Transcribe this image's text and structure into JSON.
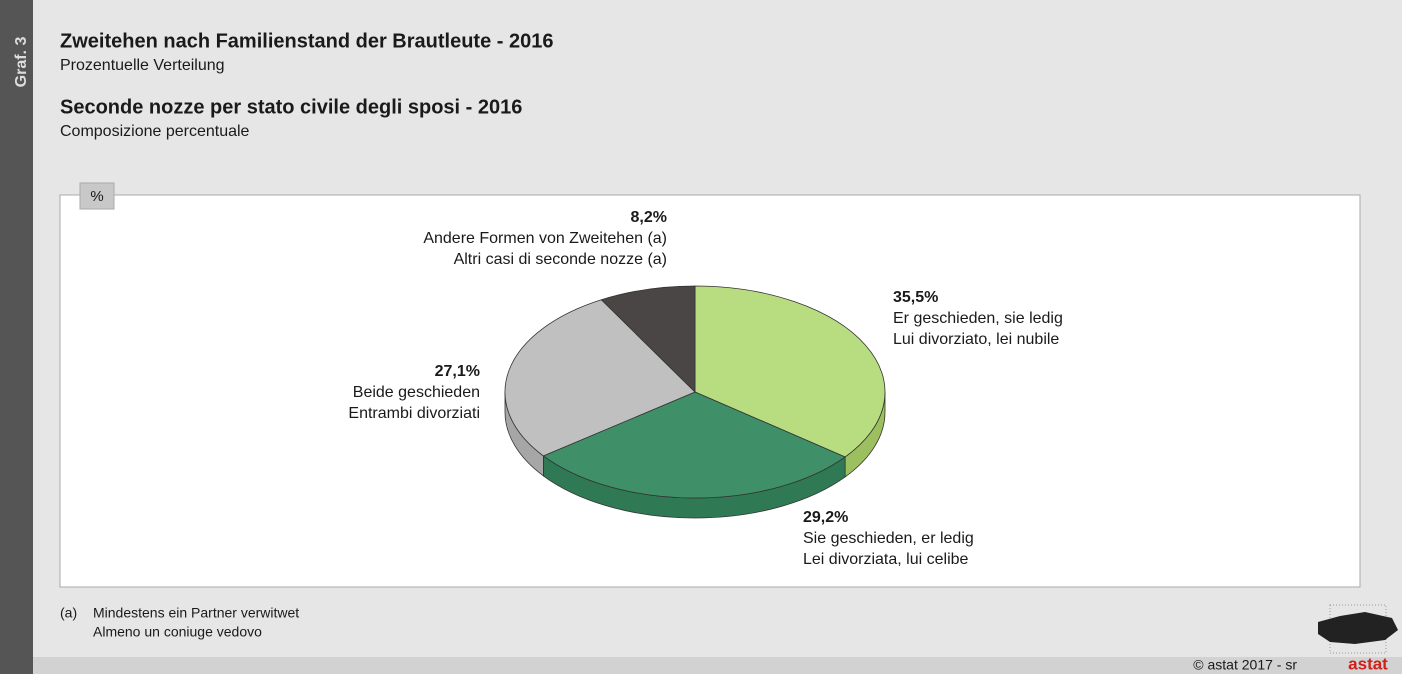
{
  "side_tab": "Graf. 3",
  "chart_data": {
    "type": "pie",
    "title": "Zweitehen nach Familienstand der Brautleute - 2016",
    "subtitle": "Prozentuelle Verteilung",
    "title_it": "Seconde nozze per stato civile degli sposi - 2016",
    "subtitle_it": "Composizione percentuale",
    "unit": "%",
    "categories": [
      "Er geschieden, sie ledig",
      "Sie geschieden, er ledig",
      "Beide geschieden",
      "Andere Formen von Zweitehen (a)"
    ],
    "categories_it": [
      "Lui divorziato, lei nubile",
      "Lei divorziata, lui celibe",
      "Entrambi divorziati",
      "Altri casi di seconde nozze (a)"
    ],
    "values": [
      35.5,
      29.2,
      27.1,
      8.2
    ],
    "value_labels": [
      "35,5%",
      "29,2%",
      "27,1%",
      "8,2%"
    ],
    "colors": [
      "#b8dc80",
      "#3f8f68",
      "#c0c0c0",
      "#4a4646"
    ],
    "side_colors": [
      "#9cc060",
      "#2f7a55",
      "#a6a6a6",
      "#363232"
    ]
  },
  "footnote": {
    "marker": "(a)",
    "lines": [
      "Mindestens ein Partner verwitwet",
      "Almeno un coniuge vedovo"
    ]
  },
  "credit": "© astat 2017 - sr",
  "logo": "astat"
}
